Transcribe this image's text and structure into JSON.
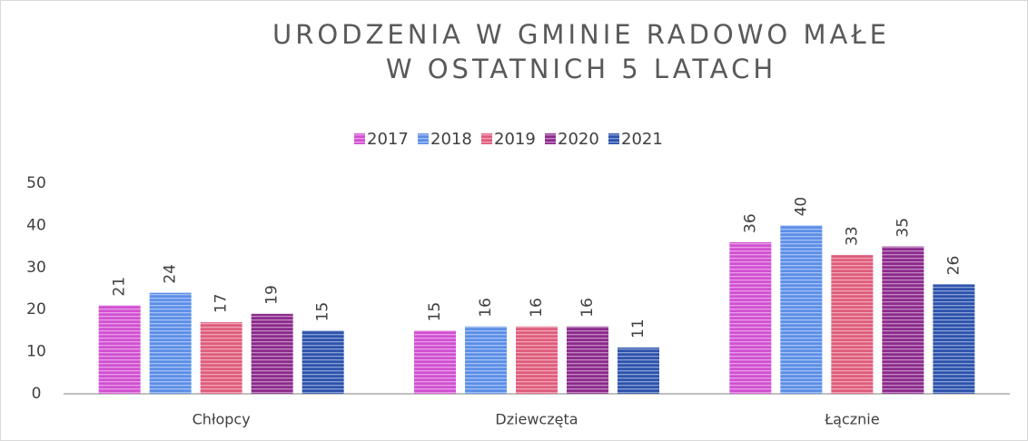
{
  "chart_data": {
    "type": "bar",
    "title": [
      "URODZENIA W GMINIE RADOWO MAŁE",
      "W OSTATNICH 5 LATACH"
    ],
    "categories": [
      "Chłopcy",
      "Dziewczęta",
      "Łącznie"
    ],
    "series": [
      {
        "name": "2017",
        "color": "#d24fd2",
        "values": [
          21,
          15,
          36
        ]
      },
      {
        "name": "2018",
        "color": "#5b8ee8",
        "values": [
          24,
          16,
          40
        ]
      },
      {
        "name": "2019",
        "color": "#e05c7c",
        "values": [
          17,
          16,
          33
        ]
      },
      {
        "name": "2020",
        "color": "#8c2a8c",
        "values": [
          19,
          16,
          35
        ]
      },
      {
        "name": "2021",
        "color": "#2c52ad",
        "values": [
          15,
          11,
          26
        ]
      }
    ],
    "ylim": [
      0,
      50
    ],
    "yticks": [
      0,
      10,
      20,
      30,
      40,
      50
    ],
    "grid": false,
    "legend": "top"
  }
}
